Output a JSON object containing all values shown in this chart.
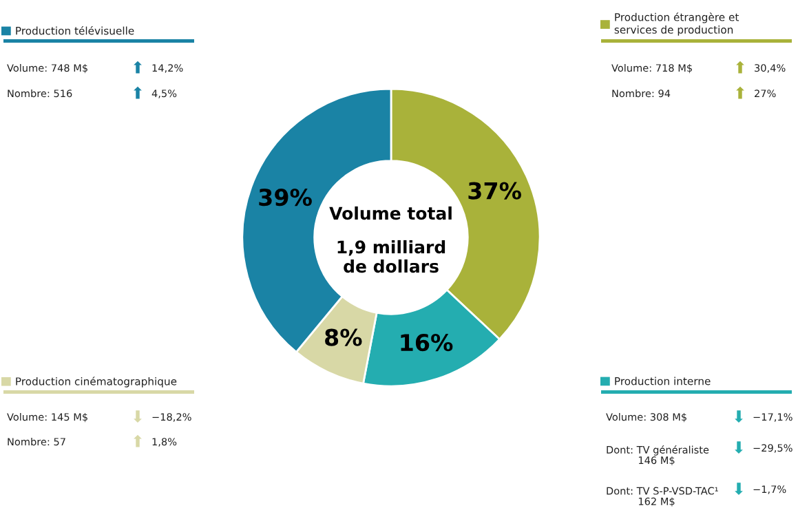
{
  "chart_data": {
    "type": "donut",
    "categories": [
      "Production étrangère et\nservices de production",
      "Production interne",
      "Production cinématographique",
      "Production télévisuelle"
    ],
    "values": [
      37,
      16,
      8,
      39
    ],
    "colors": [
      "#a9b23a",
      "#24adb0",
      "#d8d8a6",
      "#1a83a5"
    ],
    "value_labels": [
      "37%",
      "16%",
      "8%",
      "39%"
    ],
    "legend": "top left",
    "annotations": [
      "Volume total",
      "1,9 milliard\nde dollars",
      "Volume: 718 M$",
      "⬆ 30,4%",
      "Nombre: 94",
      "⬆ 27%",
      "Volume: 308 M$",
      "⬇ −17,1%",
      "Dont: TV généraliste\n          146 M$",
      "⬇ −29,5%",
      "Dont: TV S-P-VSD-TAC¹\n          162 M$",
      "⬇ −1,7%",
      "Volume: 145 M$",
      "⬇ −18,2%",
      "Nombre: 57",
      "⬆ 1,8%",
      "Volume: 748 M$",
      "⬆ 14,2%",
      "Nombre: 516",
      "⬆ 4,5%"
    ]
  }
}
